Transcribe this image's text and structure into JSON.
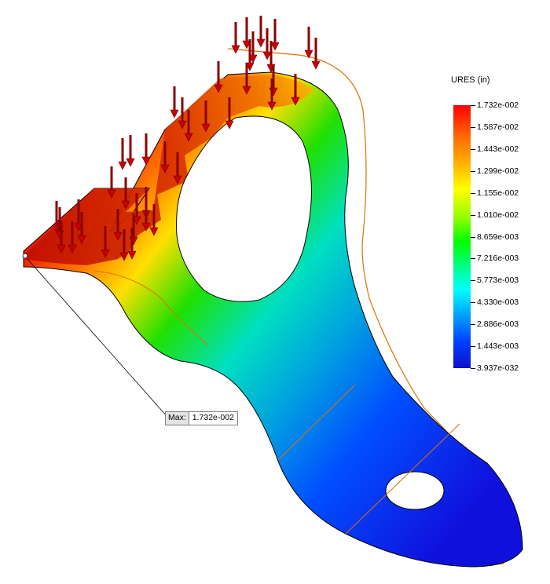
{
  "legend": {
    "title": "URES (in)",
    "ticks": [
      "1.732e-002",
      "1.587e-002",
      "1.443e-002",
      "1.299e-002",
      "1.155e-002",
      "1.010e-002",
      "8.659e-003",
      "7.216e-003",
      "5.773e-003",
      "4.330e-003",
      "2.886e-003",
      "1.443e-003",
      "3.937e-032"
    ]
  },
  "annotation": {
    "label": "Max:",
    "value": "1.732e-002"
  },
  "colors": {
    "max": "#ff0000",
    "min": "#1010cc",
    "edge": "#e07000",
    "load_arrow": "#8b0000"
  },
  "icons": [
    "load-arrow-icon"
  ]
}
